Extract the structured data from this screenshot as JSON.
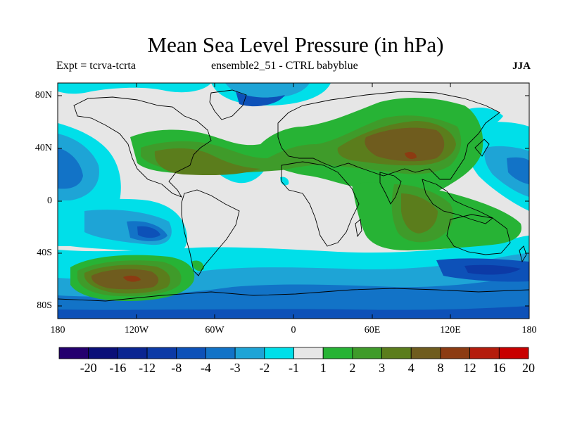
{
  "title": "Mean Sea Level Pressure (in hPa)",
  "subtitle_left": "Expt = tcrva-tcrta",
  "subtitle_center": "ensemble2_51 - CTRL babyblue",
  "subtitle_right": "JJA",
  "lat_labels": [
    "80N",
    "40N",
    "0",
    "40S",
    "80S"
  ],
  "lon_labels": [
    "180",
    "120W",
    "60W",
    "0",
    "60E",
    "120E",
    "180"
  ],
  "colorbar": {
    "labels": [
      "-20",
      "-16",
      "-12",
      "-8",
      "-4",
      "-3",
      "-2",
      "-1",
      "1",
      "2",
      "3",
      "4",
      "8",
      "12",
      "16",
      "20"
    ],
    "colors": [
      "#24006e",
      "#0a0f78",
      "#0a2591",
      "#0c3aa6",
      "#0d51b8",
      "#1273c7",
      "#1ea4d6",
      "#00dfe9",
      "#e6e6e6",
      "#27b335",
      "#3f9b2a",
      "#5b7d1c",
      "#6f5c1e",
      "#8c3b12",
      "#b41c0c",
      "#c80000"
    ]
  },
  "map_colors": {
    "neutral": "#e6e6e6",
    "weak_neg": "#00dfe9",
    "neg1": "#1ea4d6",
    "neg2": "#1273c7",
    "neg3": "#0d51b8",
    "neg4": "#0c3aa6",
    "pos1": "#27b335",
    "pos2": "#3f9b2a",
    "pos3": "#5b7d1c",
    "pos4": "#6f5c1e",
    "pos5": "#8c3b12",
    "pos6": "#b41c0c",
    "coast": "#000000",
    "frame": "#000000"
  }
}
